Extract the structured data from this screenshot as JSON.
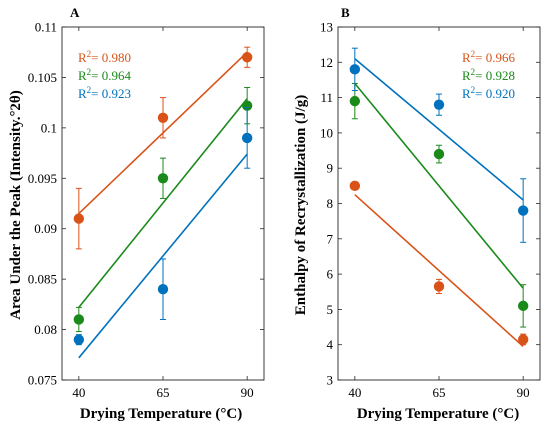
{
  "chart_data": [
    {
      "type": "scatter",
      "panel_label": "A",
      "xlabel": "Drying Temperature (°C)",
      "ylabel": "Area Under the Peak (Intensity.°2θ)",
      "x": [
        40,
        65,
        90
      ],
      "xlim": [
        35,
        95
      ],
      "ylim": [
        0.075,
        0.11
      ],
      "yticks": [
        "0.075",
        "0.08",
        "0.085",
        "0.09",
        "0.095",
        "0.1",
        "0.105",
        "0.11"
      ],
      "xticks": [
        "40",
        "65",
        "90"
      ],
      "series": [
        {
          "color": "#d95319",
          "values": [
            0.091,
            0.101,
            0.107
          ],
          "errors": [
            0.003,
            0.002,
            0.001
          ],
          "fit": [
            0.0915,
            0.1075
          ],
          "r2_prefix": "R",
          "r2_sup": "2",
          "r2_value": "= 0.980"
        },
        {
          "color": "#1a8a1a",
          "values": [
            0.081,
            0.095,
            0.1022
          ],
          "errors": [
            0.0012,
            0.002,
            0.0018
          ],
          "fit": [
            0.0822,
            0.1029
          ],
          "r2_prefix": "R",
          "r2_sup": "2",
          "r2_value": "= 0.964"
        },
        {
          "color": "#0072bd",
          "values": [
            0.079,
            0.084,
            0.099
          ],
          "errors": [
            0.0005,
            0.003,
            0.003
          ],
          "fit": [
            0.0772,
            0.0974
          ],
          "r2_prefix": "R",
          "r2_sup": "2",
          "r2_value": "= 0.923"
        }
      ]
    },
    {
      "type": "scatter",
      "panel_label": "B",
      "xlabel": "Drying Temperature (°C)",
      "ylabel": "Enthalpy of Recrystallization (J/g)",
      "x": [
        40,
        65,
        90
      ],
      "xlim": [
        35,
        95
      ],
      "ylim": [
        3,
        13
      ],
      "yticks": [
        "3",
        "4",
        "5",
        "6",
        "7",
        "8",
        "9",
        "10",
        "11",
        "12",
        "13"
      ],
      "xticks": [
        "40",
        "65",
        "90"
      ],
      "series": [
        {
          "color": "#d95319",
          "values": [
            8.5,
            5.65,
            4.15
          ],
          "errors": [
            0.1,
            0.2,
            0.15
          ],
          "fit": [
            8.25,
            3.95
          ],
          "r2_prefix": "R",
          "r2_sup": "2",
          "r2_value": "= 0.966"
        },
        {
          "color": "#1a8a1a",
          "values": [
            10.9,
            9.4,
            5.1
          ],
          "errors": [
            0.5,
            0.25,
            0.6
          ],
          "fit": [
            11.4,
            5.6
          ],
          "r2_prefix": "R",
          "r2_sup": "2",
          "r2_value": "= 0.928"
        },
        {
          "color": "#0072bd",
          "values": [
            11.8,
            10.8,
            7.8
          ],
          "errors": [
            0.6,
            0.3,
            0.9
          ],
          "fit": [
            12.1,
            8.1
          ],
          "r2_prefix": "R",
          "r2_sup": "2",
          "r2_value": "= 0.920"
        }
      ]
    }
  ]
}
